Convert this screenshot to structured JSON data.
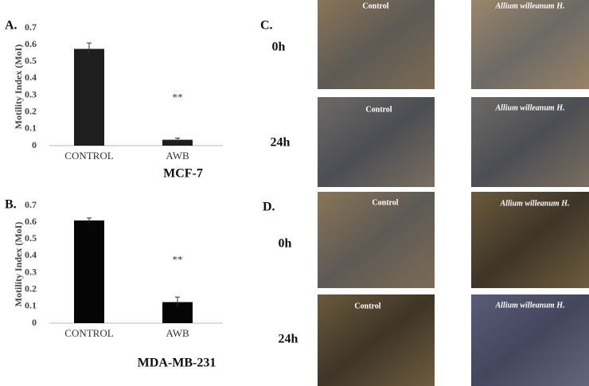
{
  "chart_data": [
    {
      "type": "bar",
      "panel": "A.",
      "subtitle": "MCF-7",
      "y_label": "Motility Index (MoI)",
      "categories": [
        "CONTROL",
        "AWB"
      ],
      "values": [
        0.575,
        0.035
      ],
      "errors": [
        0.035,
        0.01
      ],
      "annotation": "**",
      "color": "#1e1e1e",
      "ylim": [
        0,
        0.7
      ],
      "yticks": [
        0,
        0.1,
        0.2,
        0.3,
        0.4,
        0.5,
        0.6,
        0.7
      ],
      "grid": false
    },
    {
      "type": "bar",
      "panel": "B.",
      "subtitle": "MDA-MB-231",
      "y_label": "Motility Index (MoI)",
      "categories": [
        "CONTROL",
        "AWB"
      ],
      "values": [
        0.61,
        0.125
      ],
      "errors": [
        0.015,
        0.03
      ],
      "annotation": "**",
      "color": "#050505",
      "ylim": [
        0,
        0.7
      ],
      "yticks": [
        0,
        0.1,
        0.2,
        0.3,
        0.4,
        0.5,
        0.6,
        0.7
      ],
      "grid": false
    }
  ],
  "panels": [
    {
      "letter": "C.",
      "rows": [
        {
          "time": "0h",
          "images": [
            "Control",
            "Allium willeanum H."
          ]
        },
        {
          "time": "24h",
          "images": [
            "Control",
            "Allium willeanum H."
          ]
        }
      ]
    },
    {
      "letter": "D.",
      "rows": [
        {
          "time": "0h",
          "images": [
            "Control",
            "Allium willeanum H."
          ]
        },
        {
          "time": "24h",
          "images": [
            "Control",
            "Allium willeanum H."
          ]
        }
      ]
    }
  ]
}
